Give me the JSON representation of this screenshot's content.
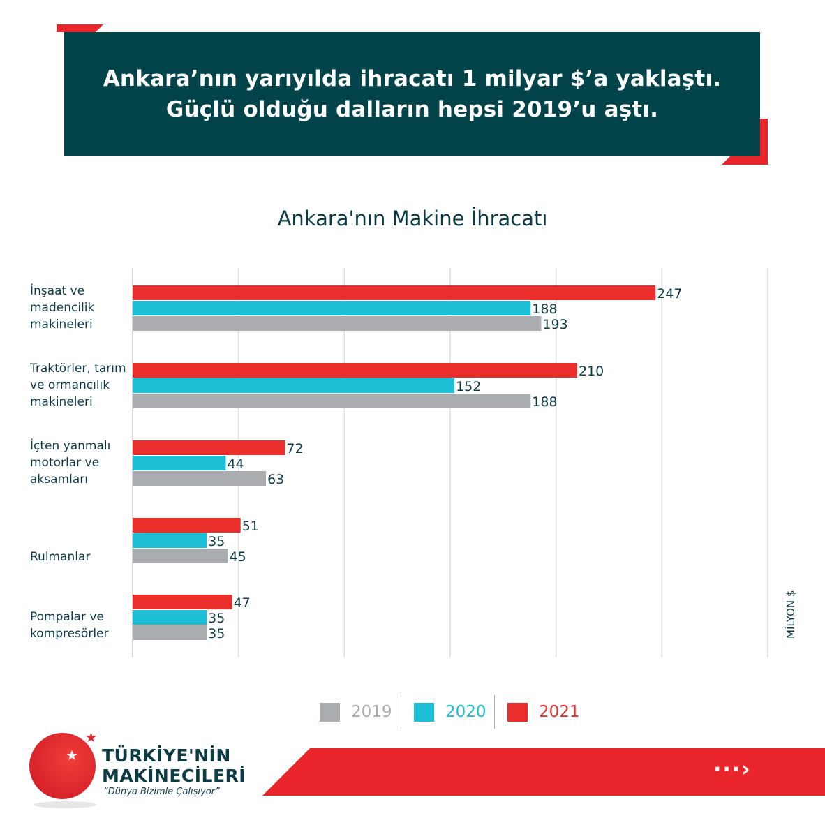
{
  "banner": {
    "line1": "Ankara’nın yarıyılda ihracatı 1 milyar $’a yaklaştı.",
    "line2": "Güçlü olduğu dalların hepsi 2019’u aştı."
  },
  "chart_data": {
    "type": "bar",
    "orientation": "horizontal",
    "title": "Ankara'nın Makine İhracatı",
    "unit_label": "MİLYON $",
    "categories": [
      [
        "İnşaat ve",
        "madencilik",
        "makineleri"
      ],
      [
        "Traktörler, tarım",
        "ve ormancılık",
        "makineleri"
      ],
      [
        "İçten yanmalı",
        "motorlar ve",
        "aksamları"
      ],
      [
        "Rulmanlar"
      ],
      [
        "Pompalar ve",
        "kompresörler"
      ]
    ],
    "series": [
      {
        "name": "2021",
        "color": "#ea2e2b",
        "values": [
          247,
          210,
          72,
          51,
          47
        ]
      },
      {
        "name": "2020",
        "color": "#1dbfd6",
        "values": [
          188,
          152,
          44,
          35,
          35
        ]
      },
      {
        "name": "2019",
        "color": "#a9adb0",
        "values": [
          193,
          188,
          63,
          45,
          35
        ]
      }
    ],
    "xlim": [
      0,
      300
    ],
    "grid": true,
    "legend_position": "bottom"
  },
  "legend": [
    {
      "label": "2019",
      "color": "#a9adb0"
    },
    {
      "label": "2020",
      "color": "#1dbfd6"
    },
    {
      "label": "2021",
      "color": "#ea2e2b"
    }
  ],
  "brand": {
    "line1": "TÜRKİYE'NİN",
    "line2": "MAKİNECİLERİ",
    "slogan": "“Dünya Bizimle Çalışıyor”",
    "next_glyph": "···›",
    "star_glyph": "★"
  },
  "colors": {
    "banner_bg": "#03444b",
    "accent_red": "#e8262b",
    "text_dark": "#0c3b45"
  }
}
